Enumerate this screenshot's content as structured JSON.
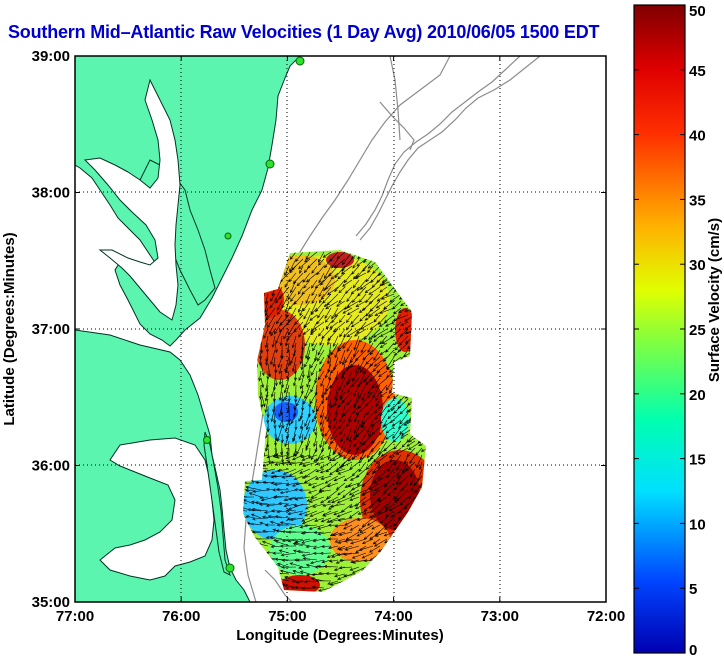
{
  "title": "Southern Mid–Atlantic Raw Velocities (1 Day Avg) 2010/06/05 1500 EDT",
  "x_axis_label": "Longitude (Degrees:Minutes)",
  "y_axis_label": "Latitude (Degrees:Minutes)",
  "x_ticks": [
    "77:00",
    "76:00",
    "75:00",
    "74:00",
    "73:00",
    "72:00"
  ],
  "y_ticks": [
    "39:00",
    "38:00",
    "37:00",
    "36:00",
    "35:00"
  ],
  "colorbar": {
    "label": "Surface Velocity (cm/s)",
    "ticks": [
      "0",
      "5",
      "10",
      "15",
      "20",
      "25",
      "30",
      "35",
      "40",
      "45",
      "50"
    ],
    "min": 0,
    "max": 50,
    "colormap": "jet"
  },
  "map": {
    "land_color": "#5cf5b0",
    "water_color": "#ffffff",
    "bathymetry_color": "#8c8c8c",
    "grid": "dotted",
    "x_range": [
      -77,
      -72
    ],
    "y_range": [
      35,
      39
    ]
  }
}
